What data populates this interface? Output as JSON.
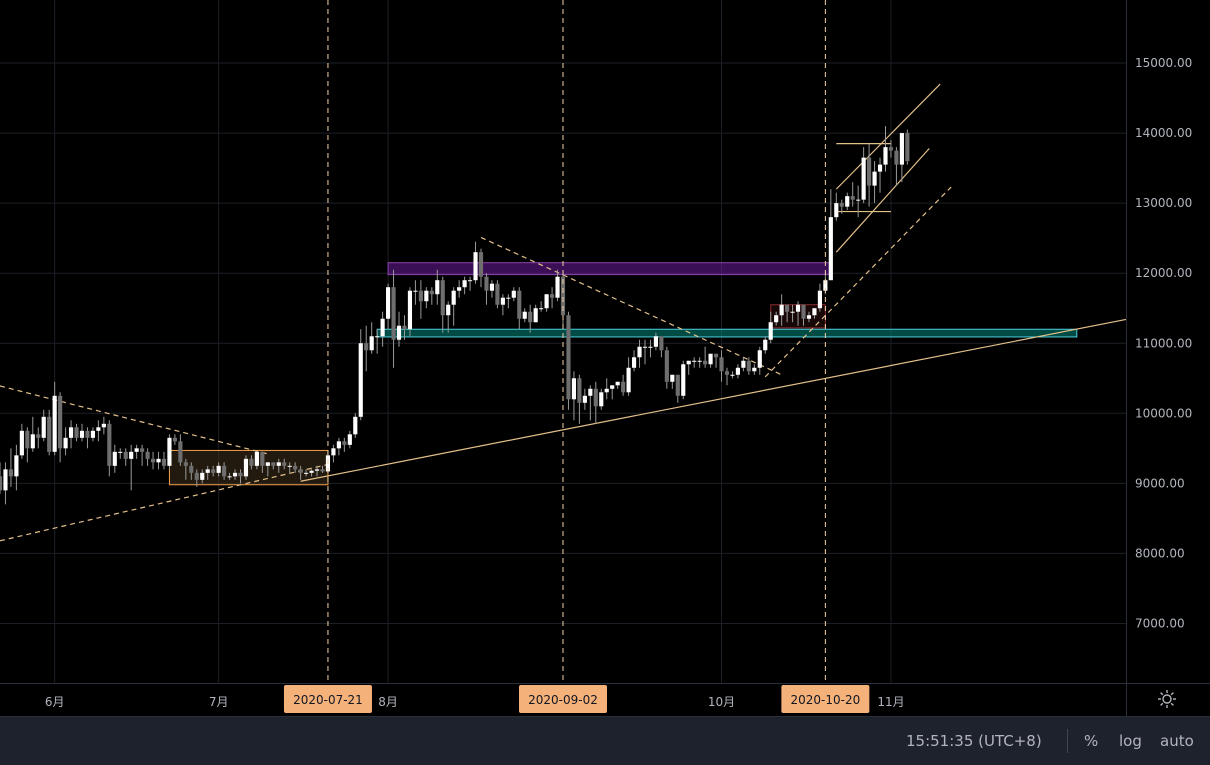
{
  "chart_data": {
    "type": "candlestick",
    "price_axis_labels": [
      "15000.00",
      "14000.00",
      "13000.00",
      "12000.00",
      "11000.00",
      "10000.00",
      "9000.00",
      "8000.00",
      "7000.00"
    ],
    "price_axis_values": [
      15000,
      14000,
      13000,
      12000,
      11000,
      10000,
      9000,
      8000,
      7000
    ],
    "y_range": [
      6150,
      15900
    ],
    "x_range": [
      "2020-05-22",
      "2020-12-14"
    ],
    "month_labels": [
      {
        "label": "6月",
        "date": "2020-06-01"
      },
      {
        "label": "7月",
        "date": "2020-07-01"
      },
      {
        "label": "8月",
        "date": "2020-08-01"
      },
      {
        "label": "10月",
        "date": "2020-10-01"
      },
      {
        "label": "11月",
        "date": "2020-11-01"
      }
    ],
    "event_dates": [
      {
        "label": "2020-07-21",
        "date": "2020-07-21"
      },
      {
        "label": "2020-09-02",
        "date": "2020-09-02"
      },
      {
        "label": "2020-10-20",
        "date": "2020-10-20"
      }
    ],
    "ohlc": [
      [
        "2020-05-22",
        9100,
        9300,
        8850,
        8900
      ],
      [
        "2020-05-23",
        8900,
        9300,
        8700,
        9200
      ],
      [
        "2020-05-24",
        9200,
        9500,
        8950,
        9100
      ],
      [
        "2020-05-25",
        9100,
        9550,
        8900,
        9400
      ],
      [
        "2020-05-26",
        9400,
        9850,
        9350,
        9750
      ],
      [
        "2020-05-27",
        9750,
        9800,
        9300,
        9500
      ],
      [
        "2020-05-28",
        9500,
        9950,
        9450,
        9700
      ],
      [
        "2020-05-29",
        9700,
        9800,
        9500,
        9650
      ],
      [
        "2020-05-30",
        9650,
        10050,
        9600,
        9950
      ],
      [
        "2020-05-31",
        9950,
        10050,
        9400,
        9450
      ],
      [
        "2020-06-01",
        9450,
        10450,
        9400,
        10250
      ],
      [
        "2020-06-02",
        10250,
        10300,
        9300,
        9500
      ],
      [
        "2020-06-03",
        9500,
        9800,
        9400,
        9650
      ],
      [
        "2020-06-04",
        9650,
        9900,
        9500,
        9800
      ],
      [
        "2020-06-05",
        9800,
        9850,
        9600,
        9650
      ],
      [
        "2020-06-06",
        9650,
        9850,
        9600,
        9750
      ],
      [
        "2020-06-07",
        9750,
        9800,
        9500,
        9650
      ],
      [
        "2020-06-08",
        9650,
        9800,
        9600,
        9750
      ],
      [
        "2020-06-09",
        9750,
        9900,
        9600,
        9800
      ],
      [
        "2020-06-10",
        9800,
        9950,
        9700,
        9850
      ],
      [
        "2020-06-11",
        9850,
        9900,
        9100,
        9250
      ],
      [
        "2020-06-12",
        9250,
        9550,
        9150,
        9450
      ],
      [
        "2020-06-13",
        9450,
        9500,
        9350,
        9450
      ],
      [
        "2020-06-14",
        9450,
        9500,
        9250,
        9350
      ],
      [
        "2020-06-15",
        9350,
        9550,
        8900,
        9450
      ],
      [
        "2020-06-16",
        9450,
        9550,
        9350,
        9500
      ],
      [
        "2020-06-17",
        9500,
        9550,
        9250,
        9450
      ],
      [
        "2020-06-18",
        9450,
        9500,
        9250,
        9350
      ],
      [
        "2020-06-19",
        9350,
        9450,
        9200,
        9300
      ],
      [
        "2020-06-20",
        9300,
        9450,
        9200,
        9350
      ],
      [
        "2020-06-21",
        9350,
        9450,
        9200,
        9250
      ],
      [
        "2020-06-22",
        9250,
        9700,
        9200,
        9650
      ],
      [
        "2020-06-23",
        9650,
        9700,
        9550,
        9600
      ],
      [
        "2020-06-24",
        9600,
        9700,
        9250,
        9300
      ],
      [
        "2020-06-25",
        9300,
        9350,
        9050,
        9250
      ],
      [
        "2020-06-26",
        9250,
        9300,
        9050,
        9150
      ],
      [
        "2020-06-27",
        9150,
        9200,
        8950,
        9050
      ],
      [
        "2020-06-28",
        9050,
        9200,
        9000,
        9150
      ],
      [
        "2020-06-29",
        9150,
        9250,
        9050,
        9200
      ],
      [
        "2020-06-30",
        9200,
        9250,
        9100,
        9150
      ],
      [
        "2020-07-01",
        9150,
        9300,
        9100,
        9250
      ],
      [
        "2020-07-02",
        9250,
        9300,
        9050,
        9100
      ],
      [
        "2020-07-03",
        9100,
        9150,
        9050,
        9100
      ],
      [
        "2020-07-04",
        9100,
        9200,
        9050,
        9150
      ],
      [
        "2020-07-05",
        9150,
        9200,
        9000,
        9100
      ],
      [
        "2020-07-06",
        9100,
        9400,
        9050,
        9350
      ],
      [
        "2020-07-07",
        9350,
        9400,
        9200,
        9250
      ],
      [
        "2020-07-08",
        9250,
        9450,
        9200,
        9450
      ],
      [
        "2020-07-09",
        9450,
        9450,
        9150,
        9250
      ],
      [
        "2020-07-10",
        9250,
        9300,
        9100,
        9300
      ],
      [
        "2020-07-11",
        9300,
        9300,
        9200,
        9250
      ],
      [
        "2020-07-12",
        9250,
        9350,
        9150,
        9300
      ],
      [
        "2020-07-13",
        9300,
        9350,
        9200,
        9250
      ],
      [
        "2020-07-14",
        9250,
        9300,
        9150,
        9250
      ],
      [
        "2020-07-15",
        9250,
        9300,
        9150,
        9200
      ],
      [
        "2020-07-16",
        9200,
        9250,
        9050,
        9150
      ],
      [
        "2020-07-17",
        9150,
        9200,
        9100,
        9150
      ],
      [
        "2020-07-18",
        9150,
        9200,
        9100,
        9180
      ],
      [
        "2020-07-19",
        9180,
        9250,
        9100,
        9200
      ],
      [
        "2020-07-20",
        9200,
        9250,
        9150,
        9170
      ],
      [
        "2020-07-21",
        9170,
        9450,
        9150,
        9400
      ],
      [
        "2020-07-22",
        9400,
        9550,
        9300,
        9500
      ],
      [
        "2020-07-23",
        9500,
        9650,
        9400,
        9600
      ],
      [
        "2020-07-24",
        9600,
        9650,
        9450,
        9550
      ],
      [
        "2020-07-25",
        9550,
        9750,
        9500,
        9700
      ],
      [
        "2020-07-26",
        9700,
        10000,
        9650,
        9950
      ],
      [
        "2020-07-27",
        9950,
        11200,
        9900,
        11000
      ],
      [
        "2020-07-28",
        11000,
        11250,
        10600,
        10900
      ],
      [
        "2020-07-29",
        10900,
        11300,
        10850,
        11100
      ],
      [
        "2020-07-30",
        11100,
        11200,
        10850,
        11100
      ],
      [
        "2020-07-31",
        11100,
        11450,
        10950,
        11350
      ],
      [
        "2020-08-01",
        11350,
        11850,
        11200,
        11800
      ],
      [
        "2020-08-02",
        11800,
        12050,
        10650,
        11050
      ],
      [
        "2020-08-03",
        11050,
        11450,
        10950,
        11250
      ],
      [
        "2020-08-04",
        11250,
        11400,
        11050,
        11200
      ],
      [
        "2020-08-05",
        11200,
        11800,
        11100,
        11750
      ],
      [
        "2020-08-06",
        11750,
        11900,
        11550,
        11750
      ],
      [
        "2020-08-07",
        11750,
        11900,
        11350,
        11600
      ],
      [
        "2020-08-08",
        11600,
        11800,
        11500,
        11750
      ],
      [
        "2020-08-09",
        11750,
        11800,
        11550,
        11700
      ],
      [
        "2020-08-10",
        11700,
        12050,
        11550,
        11900
      ],
      [
        "2020-08-11",
        11900,
        11950,
        11150,
        11400
      ],
      [
        "2020-08-12",
        11400,
        11600,
        11150,
        11550
      ],
      [
        "2020-08-13",
        11550,
        11800,
        11250,
        11750
      ],
      [
        "2020-08-14",
        11750,
        11900,
        11650,
        11800
      ],
      [
        "2020-08-15",
        11800,
        11950,
        11700,
        11900
      ],
      [
        "2020-08-16",
        11900,
        11950,
        11750,
        11900
      ],
      [
        "2020-08-17",
        11900,
        12450,
        11850,
        12300
      ],
      [
        "2020-08-18",
        12300,
        12350,
        11800,
        11950
      ],
      [
        "2020-08-19",
        11950,
        12000,
        11550,
        11750
      ],
      [
        "2020-08-20",
        11750,
        11900,
        11650,
        11850
      ],
      [
        "2020-08-21",
        11850,
        11900,
        11500,
        11550
      ],
      [
        "2020-08-22",
        11550,
        11700,
        11400,
        11650
      ],
      [
        "2020-08-23",
        11650,
        11700,
        11500,
        11650
      ],
      [
        "2020-08-24",
        11650,
        11800,
        11600,
        11750
      ],
      [
        "2020-08-25",
        11750,
        11800,
        11200,
        11350
      ],
      [
        "2020-08-26",
        11350,
        11500,
        11300,
        11450
      ],
      [
        "2020-08-27",
        11450,
        11550,
        11150,
        11300
      ],
      [
        "2020-08-28",
        11300,
        11550,
        11300,
        11500
      ],
      [
        "2020-08-29",
        11500,
        11600,
        11450,
        11500
      ],
      [
        "2020-08-30",
        11500,
        11700,
        11450,
        11700
      ],
      [
        "2020-08-31",
        11700,
        11800,
        11500,
        11650
      ],
      [
        "2020-09-01",
        11650,
        12050,
        11600,
        11950
      ],
      [
        "2020-09-02",
        11950,
        12000,
        11200,
        11400
      ],
      [
        "2020-09-03",
        11400,
        11450,
        10050,
        10200
      ],
      [
        "2020-09-04",
        10200,
        10600,
        9900,
        10500
      ],
      [
        "2020-09-05",
        10500,
        10550,
        9850,
        10150
      ],
      [
        "2020-09-06",
        10150,
        10350,
        10050,
        10250
      ],
      [
        "2020-09-07",
        10250,
        10400,
        9900,
        10350
      ],
      [
        "2020-09-08",
        10350,
        10450,
        9850,
        10100
      ],
      [
        "2020-09-09",
        10100,
        10350,
        10050,
        10300
      ],
      [
        "2020-09-10",
        10300,
        10500,
        10200,
        10350
      ],
      [
        "2020-09-11",
        10350,
        10400,
        10200,
        10400
      ],
      [
        "2020-09-12",
        10400,
        10450,
        10350,
        10450
      ],
      [
        "2020-09-13",
        10450,
        10550,
        10250,
        10300
      ],
      [
        "2020-09-14",
        10300,
        10800,
        10250,
        10650
      ],
      [
        "2020-09-15",
        10650,
        10900,
        10600,
        10800
      ],
      [
        "2020-09-16",
        10800,
        11050,
        10650,
        10950
      ],
      [
        "2020-09-17",
        10950,
        11050,
        10700,
        10950
      ],
      [
        "2020-09-18",
        10950,
        11050,
        10800,
        10950
      ],
      [
        "2020-09-19",
        10950,
        11150,
        10900,
        11100
      ],
      [
        "2020-09-20",
        11100,
        11100,
        10800,
        10900
      ],
      [
        "2020-09-21",
        10900,
        10950,
        10350,
        10450
      ],
      [
        "2020-09-22",
        10450,
        10550,
        10350,
        10550
      ],
      [
        "2020-09-23",
        10550,
        10550,
        10150,
        10250
      ],
      [
        "2020-09-24",
        10250,
        10750,
        10200,
        10700
      ],
      [
        "2020-09-25",
        10700,
        10750,
        10550,
        10750
      ],
      [
        "2020-09-26",
        10750,
        10800,
        10650,
        10750
      ],
      [
        "2020-09-27",
        10750,
        10800,
        10650,
        10750
      ],
      [
        "2020-09-28",
        10750,
        10950,
        10650,
        10700
      ],
      [
        "2020-09-29",
        10700,
        10850,
        10650,
        10850
      ],
      [
        "2020-09-30",
        10850,
        10850,
        10650,
        10800
      ],
      [
        "2020-10-01",
        10800,
        10900,
        10450,
        10600
      ],
      [
        "2020-10-02",
        10600,
        10650,
        10400,
        10550
      ],
      [
        "2020-10-03",
        10550,
        10600,
        10500,
        10550
      ],
      [
        "2020-10-04",
        10550,
        10700,
        10500,
        10650
      ],
      [
        "2020-10-05",
        10650,
        10800,
        10600,
        10750
      ],
      [
        "2020-10-06",
        10750,
        10800,
        10550,
        10600
      ],
      [
        "2020-10-07",
        10600,
        10700,
        10550,
        10650
      ],
      [
        "2020-10-08",
        10650,
        10950,
        10550,
        10900
      ],
      [
        "2020-10-09",
        10900,
        11100,
        10850,
        11050
      ],
      [
        "2020-10-10",
        11050,
        11450,
        11000,
        11300
      ],
      [
        "2020-10-11",
        11300,
        11450,
        11250,
        11400
      ],
      [
        "2020-10-12",
        11400,
        11700,
        11250,
        11550
      ],
      [
        "2020-10-13",
        11550,
        11550,
        11300,
        11450
      ],
      [
        "2020-10-14",
        11450,
        11550,
        11300,
        11450
      ],
      [
        "2020-10-15",
        11450,
        11600,
        11250,
        11550
      ],
      [
        "2020-10-16",
        11550,
        11550,
        11250,
        11350
      ],
      [
        "2020-10-17",
        11350,
        11450,
        11300,
        11400
      ],
      [
        "2020-10-18",
        11400,
        11500,
        11350,
        11500
      ],
      [
        "2020-10-19",
        11500,
        11850,
        11450,
        11750
      ],
      [
        "2020-10-20",
        11750,
        12000,
        11700,
        11900
      ],
      [
        "2020-10-21",
        11900,
        13200,
        11900,
        12800
      ],
      [
        "2020-10-22",
        12800,
        13150,
        12750,
        13000
      ],
      [
        "2020-10-23",
        13000,
        13050,
        12850,
        12950
      ],
      [
        "2020-10-24",
        12950,
        13150,
        12900,
        13100
      ],
      [
        "2020-10-25",
        13100,
        13300,
        12950,
        13050
      ],
      [
        "2020-10-26",
        13050,
        13250,
        12800,
        13050
      ],
      [
        "2020-10-27",
        13050,
        13800,
        13000,
        13650
      ],
      [
        "2020-10-28",
        13650,
        13850,
        12950,
        13250
      ],
      [
        "2020-10-29",
        13250,
        13600,
        13000,
        13450
      ],
      [
        "2020-10-30",
        13450,
        13650,
        13150,
        13550
      ],
      [
        "2020-10-31",
        13550,
        14100,
        13450,
        13800
      ],
      [
        "2020-11-01",
        13800,
        13900,
        13650,
        13750
      ],
      [
        "2020-11-02",
        13750,
        13800,
        13250,
        13550
      ],
      [
        "2020-11-03",
        13550,
        14000,
        13300,
        14000
      ],
      [
        "2020-11-04",
        14000,
        14050,
        13550,
        13600
      ]
    ]
  },
  "annotations": {
    "horizontal_zones": [
      {
        "name": "purple-resistance-zone",
        "from": "2020-08-01",
        "to": "2020-10-21",
        "top": 12150,
        "bottom": 11980,
        "color": "#6a1b9a",
        "border": "#8e44ad"
      },
      {
        "name": "cyan-support-zone",
        "from": "2020-07-30",
        "to": "2020-12-05",
        "top": 11200,
        "bottom": 11090,
        "color": "#00897b",
        "border": "#4dd0e1"
      },
      {
        "name": "orange-consolidation-box",
        "from": "2020-06-22",
        "to": "2020-07-21",
        "top": 9470,
        "bottom": 8980,
        "color": "#3e2f1c",
        "border": "#f5a04a"
      },
      {
        "name": "red-small-box",
        "from": "2020-10-10",
        "to": "2020-10-20",
        "top": 11550,
        "bottom": 11220,
        "color": "#2a0d0d",
        "border": "#8b2c2c"
      }
    ],
    "colors": {
      "background": "#000000",
      "grid": "#1c1f26",
      "bull_body": "#ffffff",
      "bear_body": "#6e6e6e",
      "wick": "#9a9a9a",
      "trend": "#e3c08a",
      "event_line": "#f5d4a8",
      "event_tag": "#f5b17a"
    }
  },
  "footer": {
    "time": "15:51:35 (UTC+8)",
    "percent": "%",
    "log": "log",
    "auto": "auto"
  },
  "icons": {
    "settings": "gear-icon"
  }
}
